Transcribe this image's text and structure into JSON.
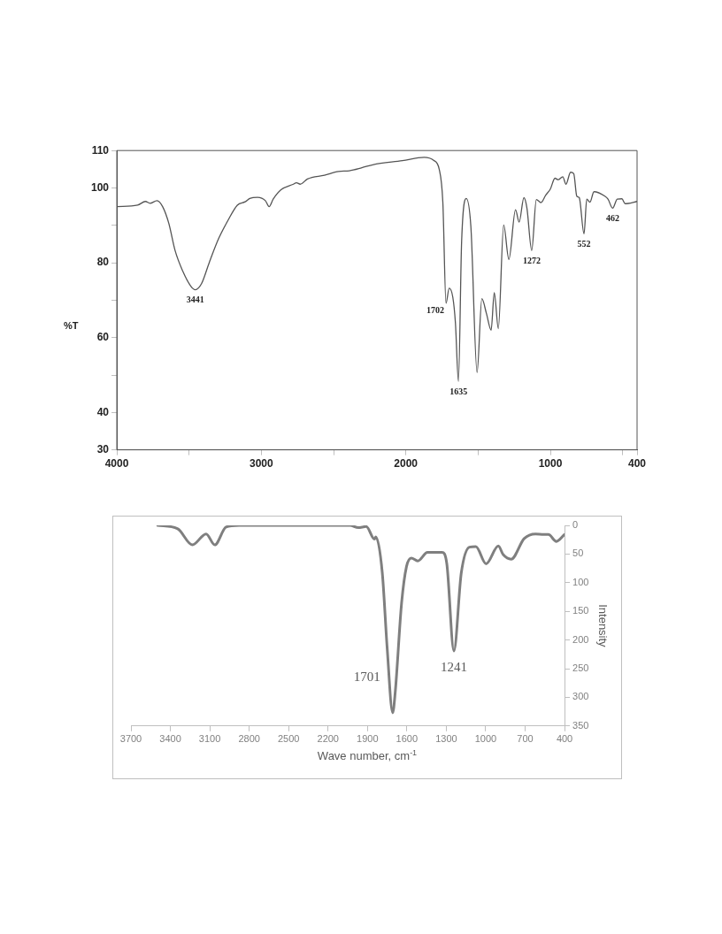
{
  "chart_data": [
    {
      "type": "line",
      "ylabel": "%T",
      "xlim": [
        4000,
        400
      ],
      "xticks": [
        4000,
        {
          "value": 3500,
          "label": null
        },
        3000,
        {
          "value": 2500,
          "label": null
        },
        2000,
        {
          "value": 1500,
          "label": null
        },
        1000,
        {
          "value": 500,
          "label": null
        },
        400
      ],
      "ylim": [
        30,
        110
      ],
      "yticks": [
        30,
        40,
        {
          "value": 50,
          "label": null
        },
        60,
        {
          "value": 70,
          "label": null
        },
        80,
        {
          "value": 90,
          "label": null
        },
        100,
        110
      ],
      "grid": false,
      "legend": false,
      "marker": "none",
      "x": [
        4000,
        3856,
        3802,
        3770,
        3722,
        3683,
        3640,
        3597,
        3543,
        3489,
        3457,
        3414,
        3360,
        3295,
        3231,
        3166,
        3112,
        3080,
        3026,
        2972,
        2946,
        2918,
        2864,
        2778,
        2757,
        2731,
        2681,
        2563,
        2466,
        2391,
        2304,
        2229,
        2024,
        1873,
        1808,
        1769,
        1744,
        1722,
        1700,
        1675,
        1657,
        1636,
        1614,
        1582,
        1550,
        1507,
        1474,
        1442,
        1410,
        1388,
        1360,
        1323,
        1287,
        1241,
        1216,
        1183,
        1162,
        1129,
        1097,
        1065,
        1032,
        1000,
        968,
        946,
        914,
        892,
        860,
        838,
        817,
        800,
        767,
        748,
        726,
        698,
        623,
        601,
        569,
        537,
        505,
        483,
        400
      ],
      "series": [
        {
          "color": "#555555",
          "values": [
            95.0,
            95.4,
            96.4,
            95.9,
            96.6,
            95.0,
            90.5,
            83.3,
            77.7,
            73.8,
            72.8,
            74.4,
            80.1,
            86.5,
            91.3,
            95.4,
            96.3,
            97.2,
            97.5,
            96.6,
            95.0,
            97.0,
            99.5,
            101.0,
            101.4,
            101.0,
            102.4,
            103.4,
            104.4,
            104.6,
            105.4,
            106.2,
            107.3,
            108.2,
            107.4,
            105.0,
            96.2,
            69.2,
            73.2,
            70.8,
            64.0,
            48.3,
            85.7,
            97.2,
            89.7,
            50.7,
            70.4,
            66.4,
            62.0,
            72.0,
            62.4,
            90.1,
            80.9,
            94.2,
            90.9,
            97.4,
            94.6,
            83.3,
            96.9,
            96.1,
            98.1,
            99.7,
            102.6,
            102.2,
            103.0,
            101.0,
            104.2,
            103.8,
            97.8,
            97.4,
            87.7,
            97.0,
            96.2,
            99.0,
            97.8,
            97.0,
            94.6,
            97.0,
            97.1,
            95.8,
            96.4
          ]
        }
      ],
      "annotations": [
        {
          "text": "3441",
          "x": 3457,
          "y": 72.8
        },
        {
          "text": "1702",
          "x": 1722,
          "y": 69.2
        },
        {
          "text": "1635",
          "x": 1636,
          "y": 48.3
        },
        {
          "text": "1272",
          "x": 1129,
          "y": 83.3
        },
        {
          "text": "552",
          "x": 767,
          "y": 87.7
        },
        {
          "text": "462",
          "x": 569,
          "y": 94.6
        }
      ]
    },
    {
      "type": "line",
      "xlabel": "Wave number, cm$^{-1}$",
      "ylabel": "Intensity",
      "xlim": [
        3700,
        400
      ],
      "xticks": [
        3700,
        3400,
        3100,
        2800,
        2500,
        2200,
        1900,
        1600,
        1300,
        1000,
        700,
        400
      ],
      "ylim": [
        350,
        0
      ],
      "yticks": [
        0,
        50,
        100,
        150,
        200,
        250,
        300,
        350
      ],
      "grid": false,
      "legend": false,
      "marker": "none",
      "x": [
        3496,
        3344,
        3233,
        3128,
        3062,
        2976,
        2878,
        2338,
        2032,
        1970,
        1909,
        1847,
        1836,
        1787,
        1750,
        1708,
        1689,
        1640,
        1603,
        1566,
        1517,
        1443,
        1333,
        1296,
        1242,
        1186,
        1124,
        1075,
        997,
        904,
        867,
        806,
        707,
        621,
        560,
        523,
        462,
        401
      ],
      "series": [
        {
          "color": "#7f7f7f",
          "values": [
            0,
            6,
            34,
            15,
            34,
            3,
            0,
            0,
            0,
            4,
            2,
            24,
            20,
            83,
            214,
            327,
            292,
            135,
            72,
            57,
            62,
            47,
            47,
            67,
            219,
            83,
            38,
            37,
            67,
            36,
            51,
            59,
            23,
            15,
            16,
            16,
            28,
            16
          ]
        }
      ],
      "annotations": [
        {
          "text": "1701",
          "x": 1708,
          "y": 327
        },
        {
          "text": "1241",
          "x": 1242,
          "y": 219
        }
      ]
    }
  ]
}
